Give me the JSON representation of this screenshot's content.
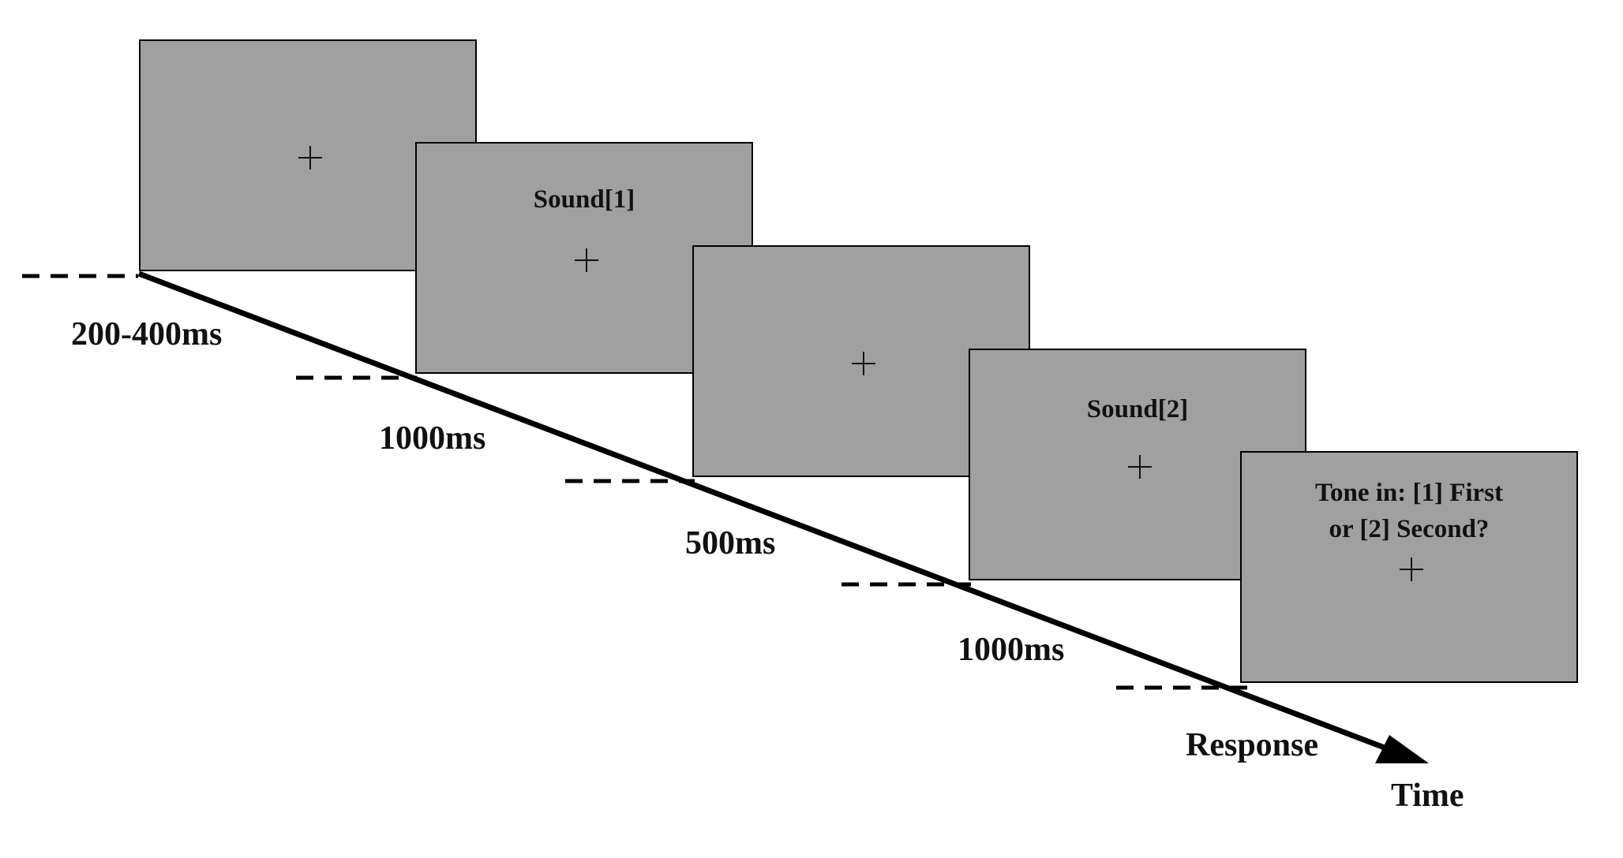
{
  "screens": [
    {
      "text": "",
      "fixation": "+"
    },
    {
      "text": "Sound[1]",
      "fixation": "+"
    },
    {
      "text": "",
      "fixation": "+"
    },
    {
      "text": "Sound[2]",
      "fixation": "+"
    },
    {
      "text": "Tone in: [1] First\nor [2] Second?",
      "fixation": "+"
    }
  ],
  "durations": [
    "200-400ms",
    "1000ms",
    "500ms",
    "1000ms"
  ],
  "response_label": "Response",
  "axis_label": "Time",
  "colors": {
    "screen_fill": "#a0a0a0",
    "line": "#000000",
    "text": "#111111"
  }
}
